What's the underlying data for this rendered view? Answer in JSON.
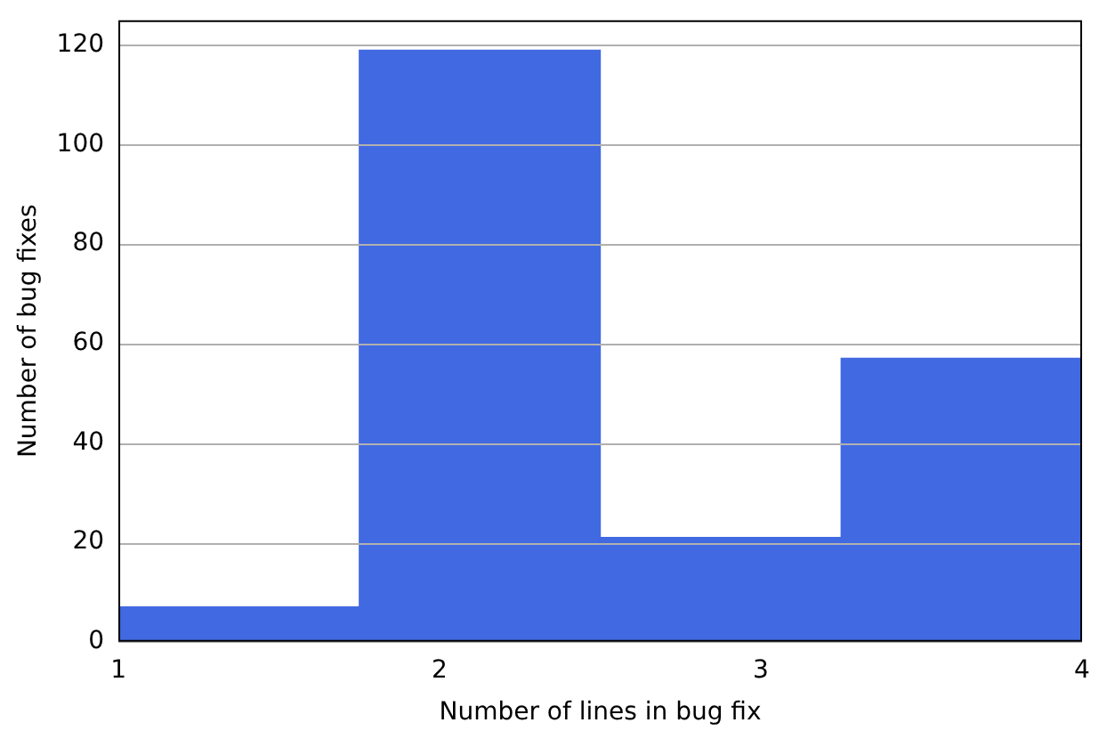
{
  "chart_data": {
    "type": "histogram",
    "xlabel": "Number of lines in bug fix",
    "ylabel": "Number of bug fixes",
    "bins": [
      1,
      1.75,
      2.5,
      3.25,
      4
    ],
    "values": [
      7,
      119,
      21,
      57
    ],
    "color": "#4169e1",
    "xlim": [
      1,
      4
    ],
    "xticks": [
      1,
      2,
      3,
      4
    ],
    "ylim": [
      0,
      125
    ],
    "yticks": [
      0,
      20,
      40,
      60,
      80,
      100,
      120
    ],
    "grid": "y",
    "legend": false
  }
}
